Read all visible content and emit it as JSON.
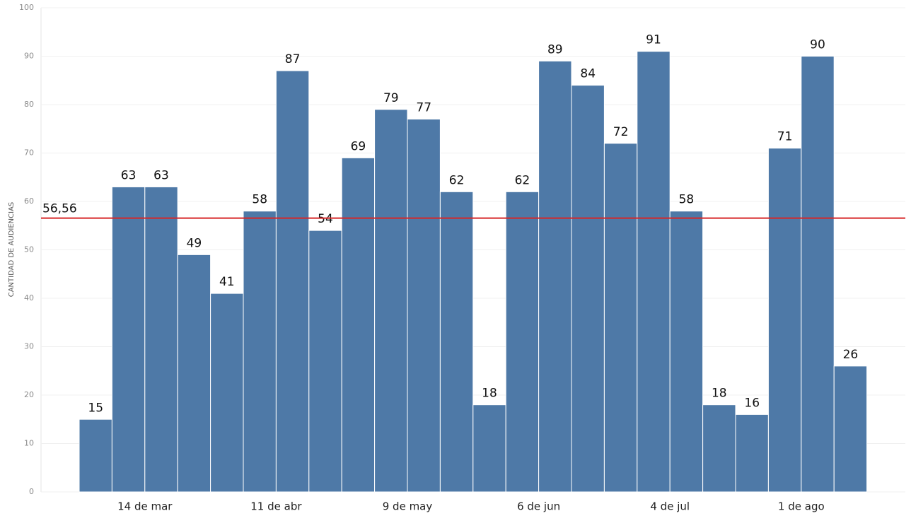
{
  "chart_data": {
    "type": "bar",
    "y_label": "CANTIDAD DE AUDIENCIAS",
    "categories": [
      null,
      null,
      "14 de mar",
      null,
      null,
      null,
      "11 de abr",
      null,
      null,
      null,
      "9 de may",
      null,
      null,
      null,
      "6 de jun",
      null,
      null,
      null,
      "4 de jul",
      null,
      null,
      null,
      "1 de ago",
      null
    ],
    "values": [
      15,
      63,
      63,
      49,
      41,
      58,
      87,
      54,
      69,
      79,
      77,
      62,
      18,
      62,
      89,
      84,
      72,
      91,
      58,
      18,
      16,
      71,
      90,
      26
    ],
    "color": "#4e79a7",
    "ylim": [
      0,
      100
    ],
    "yticks": [
      0,
      10,
      20,
      30,
      40,
      50,
      60,
      70,
      80,
      90,
      100
    ],
    "grid": true,
    "reference_line": {
      "value": 56.56,
      "label": "56,56",
      "color": "#d62728"
    }
  }
}
